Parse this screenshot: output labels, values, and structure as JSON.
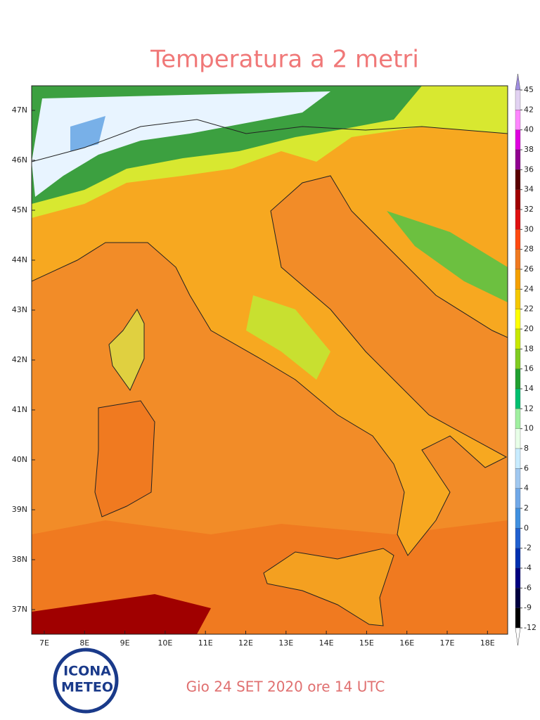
{
  "title": "Temperatura a 2 metri",
  "map": {
    "lon_labels": [
      "7E",
      "8E",
      "9E",
      "10E",
      "11E",
      "12E",
      "13E",
      "14E",
      "15E",
      "16E",
      "17E",
      "18E"
    ],
    "lat_labels": [
      "47N",
      "46N",
      "45N",
      "44N",
      "43N",
      "42N",
      "41N",
      "40N",
      "39N",
      "38N",
      "37N"
    ]
  },
  "colorbar": {
    "ticks": [
      45,
      42,
      40,
      38,
      36,
      34,
      32,
      30,
      28,
      26,
      24,
      22,
      20,
      18,
      16,
      14,
      12,
      10,
      8,
      6,
      4,
      2,
      0,
      -2,
      -4,
      -6,
      -9,
      -12
    ],
    "colors": [
      "#a08ee0",
      "#e2d2f2",
      "#ff86ff",
      "#e000e0",
      "#900090",
      "#5a0000",
      "#a00000",
      "#e01010",
      "#ff4a10",
      "#f07a20",
      "#f5a000",
      "#f5c800",
      "#ffff00",
      "#c8e800",
      "#80cc20",
      "#20a030",
      "#00c070",
      "#a0f0a0",
      "#e8ffe8",
      "#c8ecff",
      "#a0c8f0",
      "#70a8e8",
      "#4090e0",
      "#2060d0",
      "#0030b0",
      "#000080",
      "#000040",
      "#000000",
      "#ffffff"
    ]
  },
  "footer": {
    "date": "Gio 24 SET 2020 ore 14 UTC",
    "logo_top": "ICONA",
    "logo_bottom": "METEO"
  }
}
